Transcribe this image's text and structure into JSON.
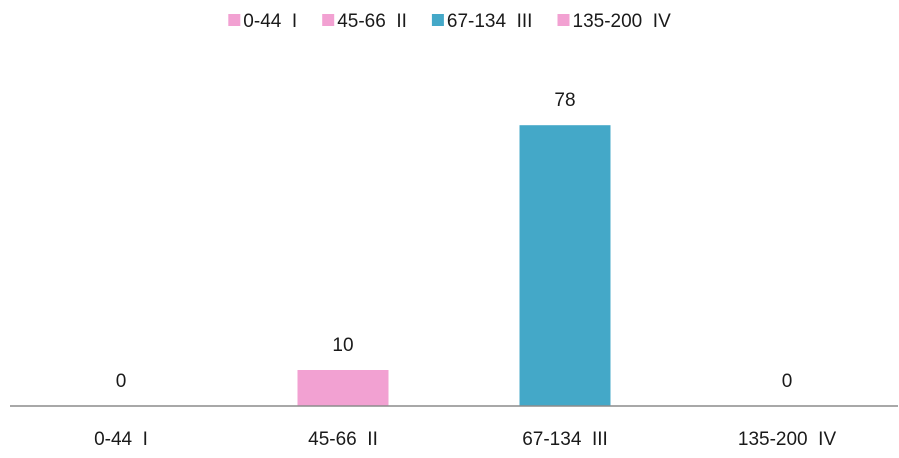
{
  "chart_data": {
    "type": "bar",
    "title": "",
    "xlabel": "",
    "ylabel": "",
    "categories": [
      "0-44  I",
      "45-66  II",
      "67-134  III",
      "135-200  IV"
    ],
    "values": [
      0,
      10,
      78,
      0
    ],
    "data_labels": [
      "0",
      "10",
      "78",
      "0"
    ],
    "bar_colors": [
      "#F2A1D2",
      "#F2A1D2",
      "#44A8C8",
      "#F2A1D2"
    ],
    "legend": {
      "position": "top",
      "entries": [
        {
          "label": "0-44  I",
          "color": "#F2A1D2"
        },
        {
          "label": "45-66  II",
          "color": "#F2A1D2"
        },
        {
          "label": "67-134  III",
          "color": "#44A8C8"
        },
        {
          "label": "135-200  IV",
          "color": "#F2A1D2"
        }
      ]
    },
    "ylim": [
      0,
      90
    ],
    "grid": false,
    "axis_color": "#8c8c8c"
  }
}
